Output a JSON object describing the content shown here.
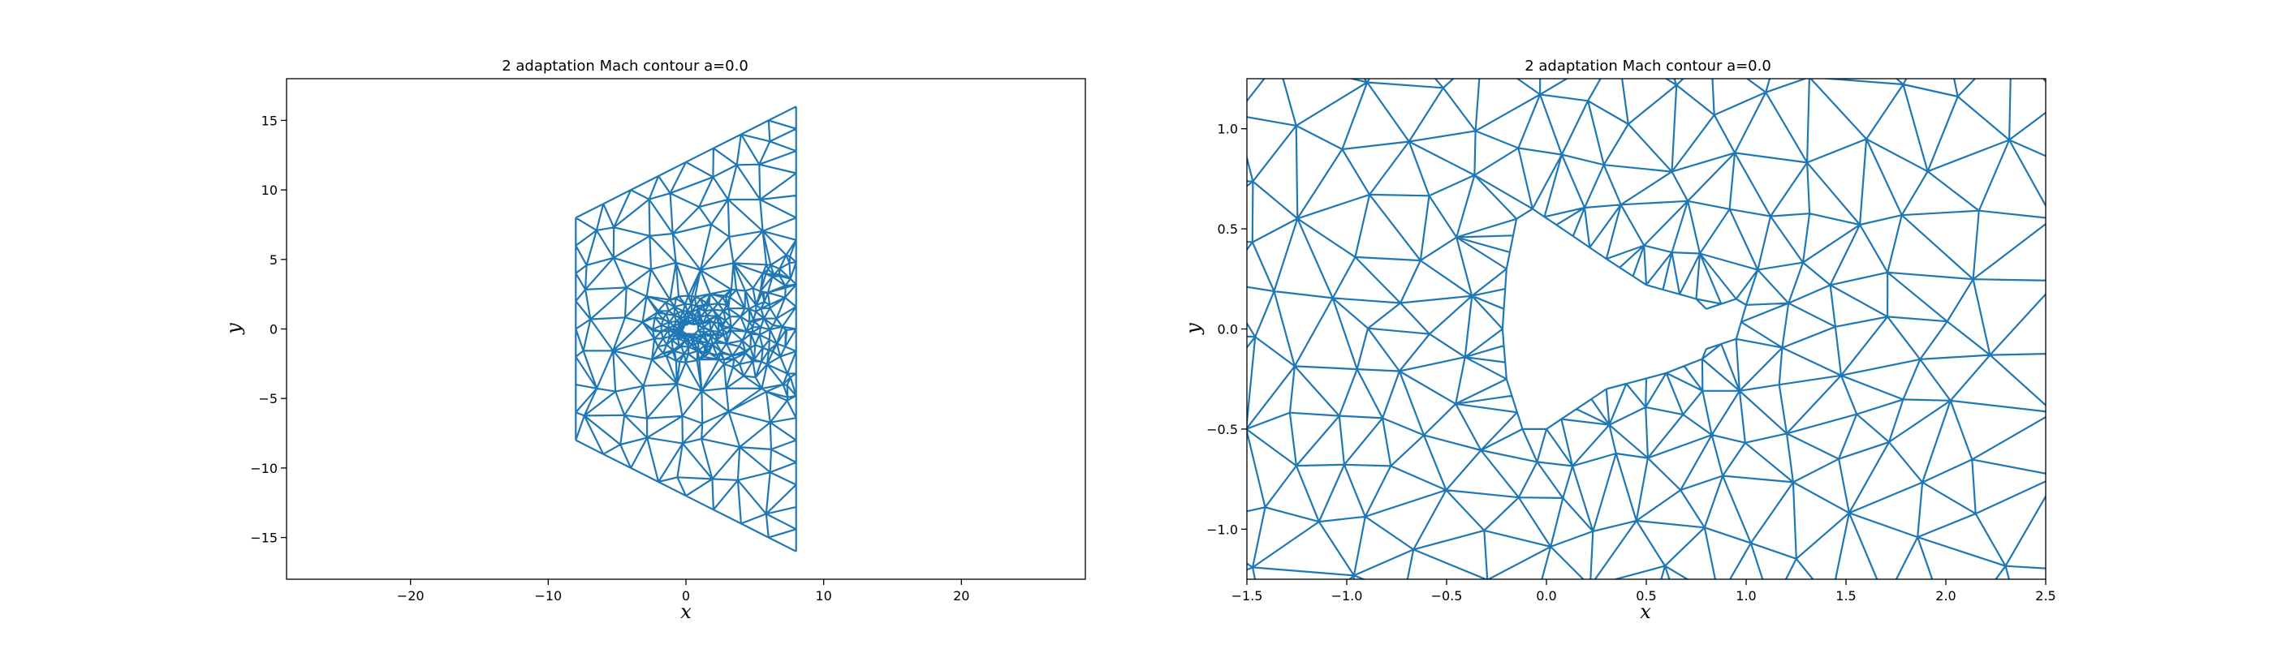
{
  "chart_data": [
    {
      "type": "triplot",
      "title": "2 adaptation Mach contour a=0.0",
      "xlabel": "x",
      "ylabel": "y",
      "xlim": [
        -29,
        29
      ],
      "ylim": [
        -18,
        18
      ],
      "xticks": [
        -20,
        -10,
        0,
        10,
        20
      ],
      "xtick_labels": [
        "−20",
        "−10",
        "0",
        "10",
        "20"
      ],
      "yticks": [
        -15,
        -10,
        -5,
        0,
        5,
        10,
        15
      ],
      "ytick_labels": [
        "−15",
        "−10",
        "−5",
        "0",
        "5",
        "10",
        "15"
      ],
      "grid": false,
      "color": "#1f77b4",
      "domain_outline": [
        [
          -8,
          8
        ],
        [
          8,
          16
        ],
        [
          8,
          -16
        ],
        [
          -8,
          -8
        ]
      ],
      "refinement_center": [
        0,
        0
      ]
    },
    {
      "type": "triplot",
      "title": "2 adaptation Mach contour a=0.0",
      "xlabel": "x",
      "ylabel": "y",
      "xlim": [
        -1.5,
        2.5
      ],
      "ylim": [
        -1.25,
        1.25
      ],
      "xticks": [
        -1.5,
        -1.0,
        -0.5,
        0.0,
        0.5,
        1.0,
        1.5,
        2.0,
        2.5
      ],
      "xtick_labels": [
        "−1.5",
        "−1.0",
        "−0.5",
        "0.0",
        "0.5",
        "1.0",
        "1.5",
        "2.0",
        "2.5"
      ],
      "yticks": [
        -1.0,
        -0.5,
        0.0,
        0.5,
        1.0
      ],
      "ytick_labels": [
        "−1.0",
        "−0.5",
        "0.0",
        "0.5",
        "1.0"
      ],
      "grid": false,
      "color": "#1f77b4",
      "body_outline": [
        [
          -0.15,
          0.55
        ],
        [
          -0.07,
          0.6
        ],
        [
          0.05,
          0.52
        ],
        [
          0.3,
          0.35
        ],
        [
          0.5,
          0.22
        ],
        [
          0.75,
          0.15
        ],
        [
          0.8,
          0.1
        ],
        [
          0.95,
          0.15
        ],
        [
          1.0,
          0.12
        ],
        [
          0.95,
          -0.05
        ],
        [
          0.8,
          -0.1
        ],
        [
          0.78,
          -0.15
        ],
        [
          0.6,
          -0.22
        ],
        [
          0.3,
          -0.3
        ],
        [
          0.0,
          -0.5
        ],
        [
          -0.12,
          -0.5
        ],
        [
          -0.2,
          -0.25
        ],
        [
          -0.22,
          0.0
        ],
        [
          -0.2,
          0.3
        ],
        [
          -0.15,
          0.55
        ]
      ]
    }
  ]
}
